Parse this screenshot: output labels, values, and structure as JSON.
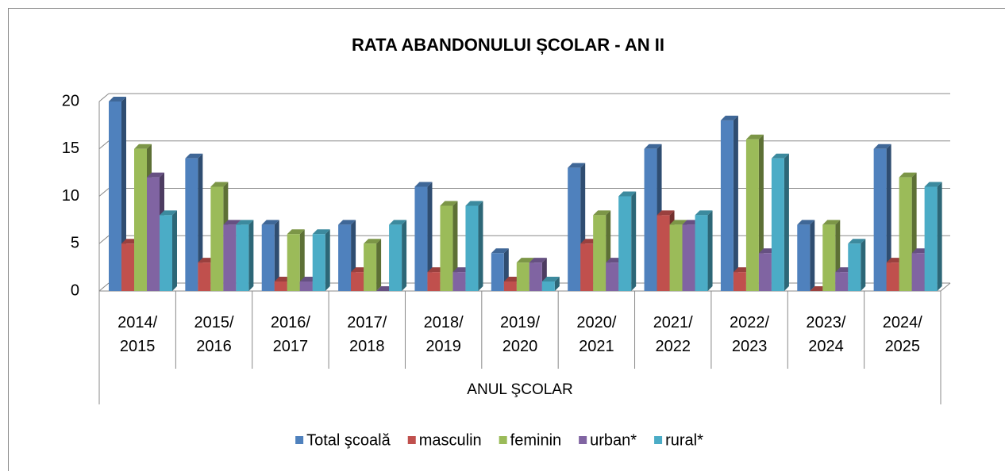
{
  "chart_data": {
    "type": "bar",
    "title": "RATA ABANDONULUI ȘCOLAR - AN II",
    "x_label": "ANUL ŞCOLAR",
    "categories": [
      "2014/ 2015",
      "2015/ 2016",
      "2016/ 2017",
      "2017/ 2018",
      "2018/ 2019",
      "2019/ 2020",
      "2020/ 2021",
      "2021/ 2022",
      "2022/ 2023",
      "2023/ 2024",
      "2024/ 2025"
    ],
    "series": [
      {
        "name": "Total şcoală",
        "color": "#4f81bd",
        "values": [
          20,
          14,
          7,
          7,
          11,
          4,
          13,
          15,
          18,
          7,
          15
        ]
      },
      {
        "name": "masculin",
        "color": "#c0504d",
        "values": [
          5,
          3,
          1,
          2,
          2,
          1,
          5,
          8,
          2,
          0,
          3
        ]
      },
      {
        "name": "feminin",
        "color": "#9bbb59",
        "values": [
          15,
          11,
          6,
          5,
          9,
          3,
          8,
          7,
          16,
          7,
          12
        ]
      },
      {
        "name": "urban*",
        "color": "#8064a2",
        "values": [
          12,
          7,
          1,
          0,
          2,
          3,
          3,
          7,
          4,
          2,
          4
        ]
      },
      {
        "name": "rural*",
        "color": "#4bacc6",
        "values": [
          8,
          7,
          6,
          7,
          9,
          1,
          10,
          8,
          14,
          5,
          11
        ]
      }
    ],
    "ylim": [
      0,
      20
    ],
    "yticks": [
      0,
      5,
      10,
      15,
      20
    ],
    "grid": true,
    "legend": "bottom"
  }
}
